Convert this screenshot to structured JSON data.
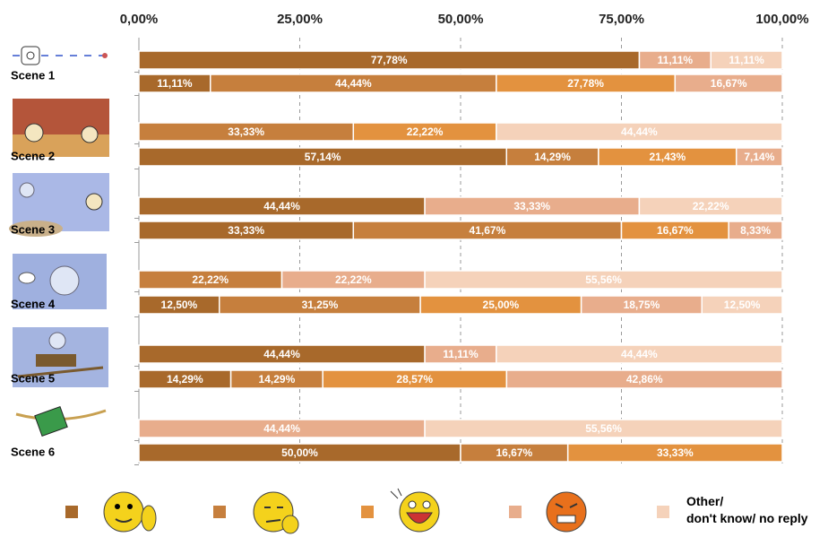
{
  "chart_data": {
    "type": "stacked-bar-horizontal",
    "categories": [
      null,
      "Scene 1",
      null,
      "Scene 2",
      null,
      "Scene 3",
      null,
      "Scene 4",
      null,
      "Scene 5",
      null,
      "Scene 6"
    ],
    "xlim": [
      0,
      100
    ],
    "xticks": [
      {
        "value": 0,
        "label": "0,00%"
      },
      {
        "value": 25,
        "label": "25,00%"
      },
      {
        "value": 50,
        "label": "50,00%"
      },
      {
        "value": 75,
        "label": "75,00%"
      },
      {
        "value": 100,
        "label": "100,00%"
      }
    ],
    "grid": true,
    "series": [
      {
        "color": "#a8692b",
        "values": [
          77.78,
          11.11,
          null,
          57.14,
          44.44,
          33.33,
          null,
          12.5,
          44.44,
          14.29,
          null,
          50
        ],
        "value_labels": [
          "77,78%",
          "11,11%",
          null,
          "57,14%",
          "44,44%",
          "33,33%",
          null,
          "12,50%",
          "44,44%",
          "14,29%",
          null,
          "50,00%"
        ]
      },
      {
        "color": "#c67f3d",
        "values": [
          null,
          44.44,
          33.33,
          14.29,
          null,
          41.67,
          22.22,
          31.25,
          null,
          14.29,
          null,
          16.67
        ],
        "value_labels": [
          null,
          "44,44%",
          "33,33%",
          "14,29%",
          null,
          "41,67%",
          "22,22%",
          "31,25%",
          null,
          "14,29%",
          null,
          "16,67%"
        ]
      },
      {
        "color": "#e3923f",
        "values": [
          null,
          27.78,
          22.22,
          21.43,
          null,
          16.67,
          null,
          25,
          null,
          28.57,
          null,
          33.33
        ],
        "value_labels": [
          null,
          "27,78%",
          "22,22%",
          "21,43%",
          null,
          "16,67%",
          null,
          "25,00%",
          null,
          "28,57%",
          null,
          "33,33%"
        ]
      },
      {
        "color": "#e8ad8c",
        "values": [
          11.11,
          16.67,
          null,
          7.14,
          33.33,
          8.33,
          22.22,
          18.75,
          11.11,
          42.86,
          44.44,
          null
        ],
        "value_labels": [
          "11,11%",
          "16,67%",
          null,
          "7,14%",
          "33,33%",
          "8,33%",
          "22,22%",
          "18,75%",
          "11,11%",
          "42,86%",
          "44,44%",
          null
        ]
      },
      {
        "name": "Other/\ndon't know/ no reply",
        "color": "#f5d2ba",
        "values": [
          11.11,
          null,
          44.44,
          null,
          22.22,
          null,
          55.56,
          12.5,
          44.44,
          null,
          55.56,
          null
        ],
        "value_labels": [
          "11,11%",
          null,
          "44,44%",
          null,
          "22,22%",
          null,
          "55,56%",
          "12,50%",
          "44,44%",
          null,
          "55,56%",
          null
        ]
      }
    ]
  }
}
